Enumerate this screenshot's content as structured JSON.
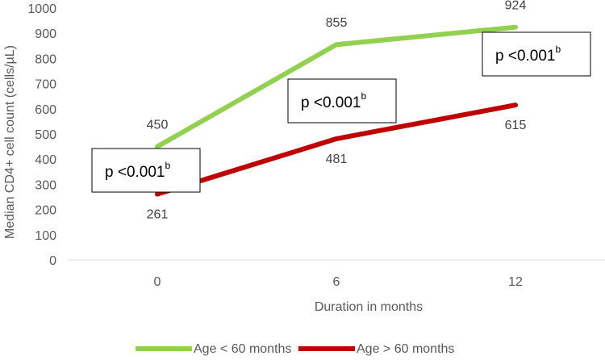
{
  "chart_data": {
    "type": "line",
    "title": "",
    "xlabel": "Duration in months",
    "ylabel": "Median CD4+ cell count (cells/µL)",
    "ylim": [
      0,
      1000
    ],
    "yticks": [
      0,
      100,
      200,
      300,
      400,
      500,
      600,
      700,
      800,
      900,
      1000
    ],
    "categories": [
      "0",
      "6",
      "12"
    ],
    "grid": false,
    "legend_position": "bottom",
    "series": [
      {
        "name": "Age < 60 months",
        "color": "#92d050",
        "values": [
          450,
          855,
          924
        ]
      },
      {
        "name": "Age > 60 months",
        "color": "#c00000",
        "values": [
          261,
          481,
          615
        ]
      }
    ],
    "annotations": [
      {
        "text": "p <0.001",
        "superscript": "b",
        "category": "0"
      },
      {
        "text": "p <0.001",
        "superscript": "b",
        "category": "6"
      },
      {
        "text": "p <0.001",
        "superscript": "b",
        "category": "12"
      }
    ]
  }
}
